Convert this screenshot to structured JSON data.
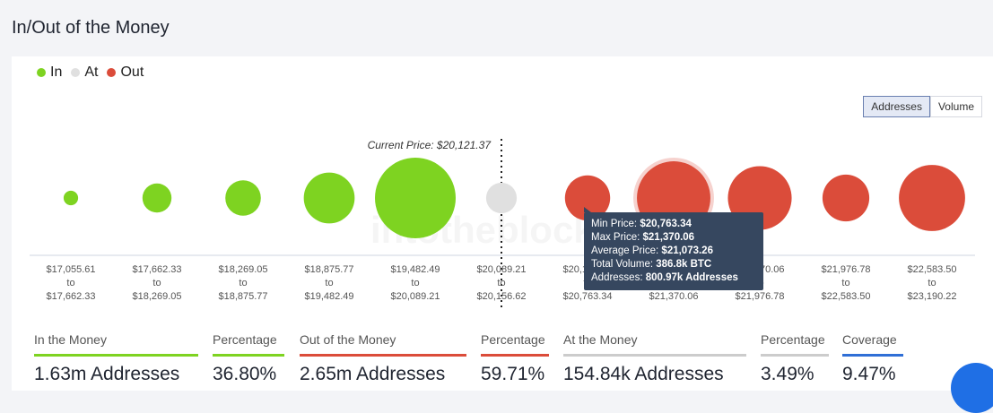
{
  "page": {
    "title": "In/Out of the Money"
  },
  "legend": [
    {
      "label": "In",
      "color": "#7ed321"
    },
    {
      "label": "At",
      "color": "#e0e0e0"
    },
    {
      "label": "Out",
      "color": "#db4c3a"
    }
  ],
  "toggle": {
    "addresses": "Addresses",
    "volume": "Volume",
    "active": "Addresses"
  },
  "watermark": "intotheblock",
  "chart_data": {
    "type": "bubble",
    "current_price_label": "Current Price: $20,121.37",
    "bubbles": [
      {
        "from": "$17,055.61",
        "to": "$17,662.33",
        "status": "In",
        "size": 0.18
      },
      {
        "from": "$17,662.33",
        "to": "$18,269.05",
        "status": "In",
        "size": 0.36
      },
      {
        "from": "$18,269.05",
        "to": "$18,875.77",
        "status": "In",
        "size": 0.44
      },
      {
        "from": "$18,875.77",
        "to": "$19,482.49",
        "status": "In",
        "size": 0.63
      },
      {
        "from": "$19,482.49",
        "to": "$20,089.21",
        "status": "In",
        "size": 1.0
      },
      {
        "from": "$20,089.21",
        "to": "$20,156.62",
        "status": "At",
        "size": 0.38
      },
      {
        "from": "$20,156.62",
        "to": "$20,763.34",
        "status": "Out",
        "size": 0.56
      },
      {
        "from": "$20,763.34",
        "to": "$21,370.06",
        "status": "Out",
        "size": 0.91
      },
      {
        "from": "$21,370.06",
        "to": "$21,976.78",
        "status": "Out",
        "size": 0.79
      },
      {
        "from": "$21,976.78",
        "to": "$22,583.50",
        "status": "Out",
        "size": 0.58
      },
      {
        "from": "$22,583.50",
        "to": "$23,190.22",
        "status": "Out",
        "size": 0.82
      }
    ],
    "to_word": "to",
    "colors": {
      "In": "#7ed321",
      "At": "#e0e0e0",
      "Out": "#db4c3a"
    },
    "hovered_index": 7
  },
  "tooltip": {
    "min_price_label": "Min Price: ",
    "min_price": "$20,763.34",
    "max_price_label": "Max Price: ",
    "max_price": "$21,370.06",
    "avg_price_label": "Average Price: ",
    "avg_price": "$21,073.26",
    "volume_label": "Total Volume: ",
    "volume": "386.8k BTC",
    "addresses_label": "Addresses: ",
    "addresses": "800.97k Addresses"
  },
  "stats": [
    {
      "label": "In the Money",
      "value": "1.63m Addresses",
      "color": "#7ed321"
    },
    {
      "label": "Percentage",
      "value": "36.80%",
      "color": "#7ed321"
    },
    {
      "label": "Out of the Money",
      "value": "2.65m Addresses",
      "color": "#db4c3a"
    },
    {
      "label": "Percentage",
      "value": "59.71%",
      "color": "#db4c3a"
    },
    {
      "label": "At the Money",
      "value": "154.84k Addresses",
      "color": "#cccccc"
    },
    {
      "label": "Percentage",
      "value": "3.49%",
      "color": "#cccccc"
    },
    {
      "label": "Coverage",
      "value": "9.47%",
      "color": "#2f6fd6"
    }
  ]
}
